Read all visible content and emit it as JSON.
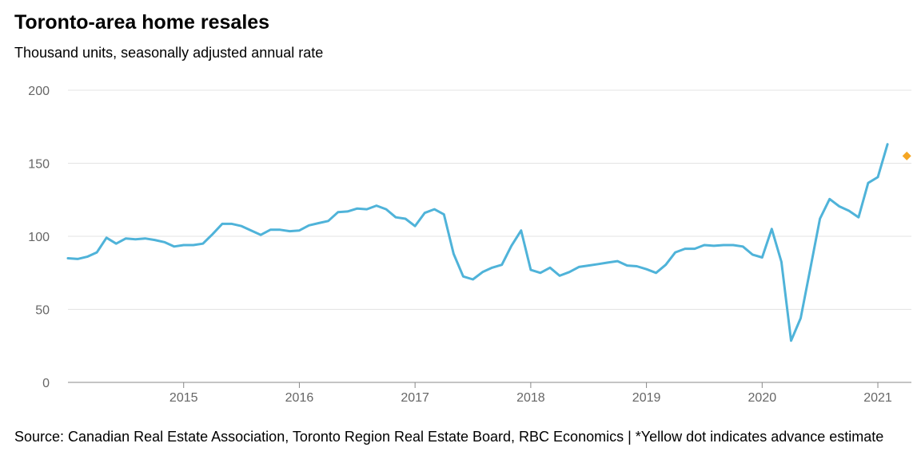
{
  "title": "Toronto-area home resales",
  "subtitle": "Thousand units, seasonally adjusted annual rate",
  "source": "Source: Canadian Real Estate Association, Toronto Region Real Estate Board, RBC Economics | *Yellow dot indicates advance estimate",
  "colors": {
    "line": "#4fb3d9",
    "estimate": "#f5a623",
    "grid": "#e3e3e3",
    "axis": "#888888"
  },
  "chart_data": {
    "type": "line",
    "title": "Toronto-area home resales",
    "ylabel": "Thousand units, seasonally adjusted annual rate",
    "xlabel": "",
    "ylim": [
      0,
      200
    ],
    "xlim": [
      2014.0,
      2021.29
    ],
    "yticks": [
      0,
      50,
      100,
      150,
      200
    ],
    "xticks": [
      2015,
      2016,
      2017,
      2018,
      2019,
      2020,
      2021
    ],
    "grid": true,
    "series": [
      {
        "name": "Home resales",
        "x_start": 2014.0,
        "x_step": 0.08333,
        "values": [
          85,
          84.5,
          86,
          89,
          99,
          95,
          98.5,
          98,
          98.5,
          97.5,
          96,
          93,
          94,
          94,
          95,
          101.5,
          108.5,
          108.5,
          107,
          104,
          101,
          104.5,
          104.5,
          103.5,
          104,
          107.5,
          109,
          110.5,
          116.5,
          117,
          119,
          118.5,
          121,
          118.5,
          113,
          112,
          107,
          116,
          118.5,
          115,
          88,
          72.5,
          70.5,
          75.5,
          78.5,
          80.5,
          93.5,
          104,
          77,
          75,
          78.5,
          73,
          75.5,
          79,
          80,
          81,
          82,
          83,
          80,
          79.5,
          77.5,
          75,
          80.5,
          89,
          91.5,
          91.5,
          94,
          93.5,
          94,
          94,
          93,
          87.5,
          85.5,
          105,
          82.5,
          28.5,
          44,
          78,
          112,
          125.5,
          120.5,
          117.5,
          113,
          136.5,
          140.5,
          163
        ]
      }
    ],
    "advance_estimate": {
      "label": "*Yellow dot indicates advance estimate",
      "x": 2021.25,
      "value": 155
    }
  }
}
